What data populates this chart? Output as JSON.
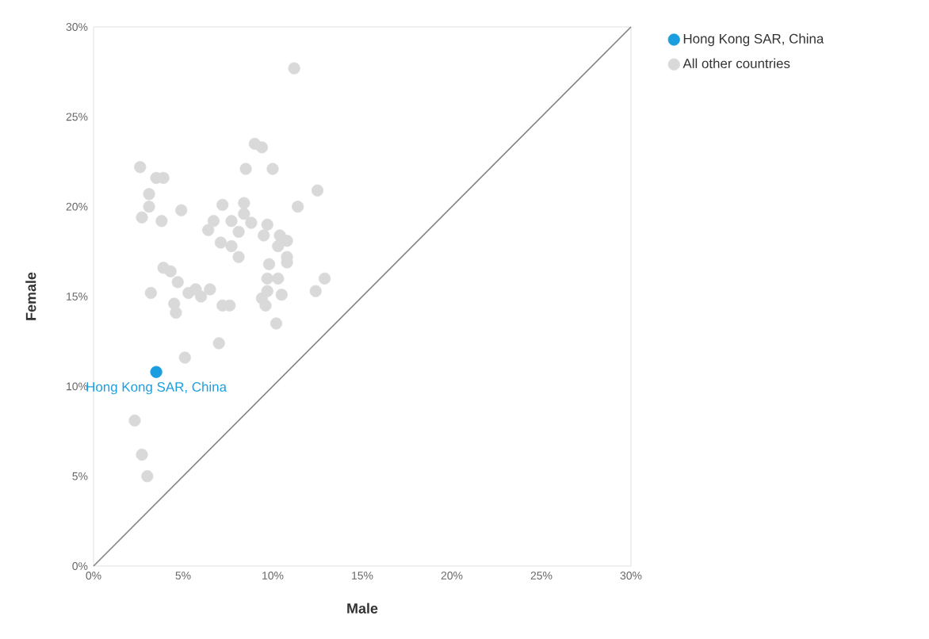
{
  "chart_data": {
    "type": "scatter",
    "xlabel": "Male",
    "ylabel": "Female",
    "xlim": [
      0,
      30
    ],
    "ylim": [
      0,
      30
    ],
    "xticks": [
      {
        "value": 0,
        "label": "0%"
      },
      {
        "value": 5,
        "label": "5%"
      },
      {
        "value": 10,
        "label": "10%"
      },
      {
        "value": 15,
        "label": "15%"
      },
      {
        "value": 20,
        "label": "20%"
      },
      {
        "value": 25,
        "label": "25%"
      },
      {
        "value": 30,
        "label": "30%"
      }
    ],
    "yticks": [
      {
        "value": 0,
        "label": "0%"
      },
      {
        "value": 5,
        "label": "5%"
      },
      {
        "value": 10,
        "label": "10%"
      },
      {
        "value": 15,
        "label": "15%"
      },
      {
        "value": 20,
        "label": "20%"
      },
      {
        "value": 25,
        "label": "25%"
      },
      {
        "value": 30,
        "label": "30%"
      }
    ],
    "legend": "top right",
    "marker": "circle",
    "series": [
      {
        "name": "Hong Kong SAR, China",
        "color": "#1a9ee0",
        "x": [
          3.5
        ],
        "values": [
          10.8
        ]
      },
      {
        "name": "All other countries",
        "color": "#d9d9d9",
        "x": [
          11.2,
          9.0,
          9.4,
          2.6,
          3.5,
          3.9,
          8.5,
          10.0,
          3.1,
          3.1,
          2.7,
          3.8,
          4.9,
          12.5,
          11.4,
          8.4,
          8.4,
          7.2,
          6.7,
          6.4,
          7.7,
          8.8,
          9.7,
          9.5,
          8.1,
          10.4,
          10.8,
          10.3,
          10.8,
          10.8,
          7.1,
          7.7,
          8.1,
          3.9,
          4.3,
          4.7,
          3.2,
          5.3,
          5.7,
          6.0,
          6.5,
          4.5,
          4.6,
          7.2,
          7.6,
          9.4,
          9.7,
          9.7,
          10.3,
          10.5,
          9.6,
          10.2,
          12.4,
          12.9,
          9.8,
          7.0,
          5.1,
          2.3,
          2.7,
          3.0
        ],
        "values": [
          27.7,
          23.5,
          23.3,
          22.2,
          21.6,
          21.6,
          22.1,
          22.1,
          20.7,
          20.0,
          19.4,
          19.2,
          19.8,
          20.9,
          20.0,
          20.2,
          19.6,
          20.1,
          19.2,
          18.7,
          19.2,
          19.1,
          19.0,
          18.4,
          18.6,
          18.4,
          18.1,
          17.8,
          17.2,
          16.9,
          18.0,
          17.8,
          17.2,
          16.6,
          16.4,
          15.8,
          15.2,
          15.2,
          15.4,
          15.0,
          15.4,
          14.6,
          14.1,
          14.5,
          14.5,
          14.9,
          15.3,
          16.0,
          16.0,
          15.1,
          14.5,
          13.5,
          15.3,
          16.0,
          16.8,
          12.4,
          11.6,
          8.1,
          6.2,
          5.0
        ]
      },
      {
        "type": "line",
        "color": "#808080",
        "marker": "none",
        "x": [
          0,
          30
        ],
        "values": [
          0,
          30
        ]
      }
    ],
    "annotations": [
      {
        "text": "Hong Kong SAR, China",
        "x": 3.5,
        "y": 10.8
      }
    ]
  }
}
